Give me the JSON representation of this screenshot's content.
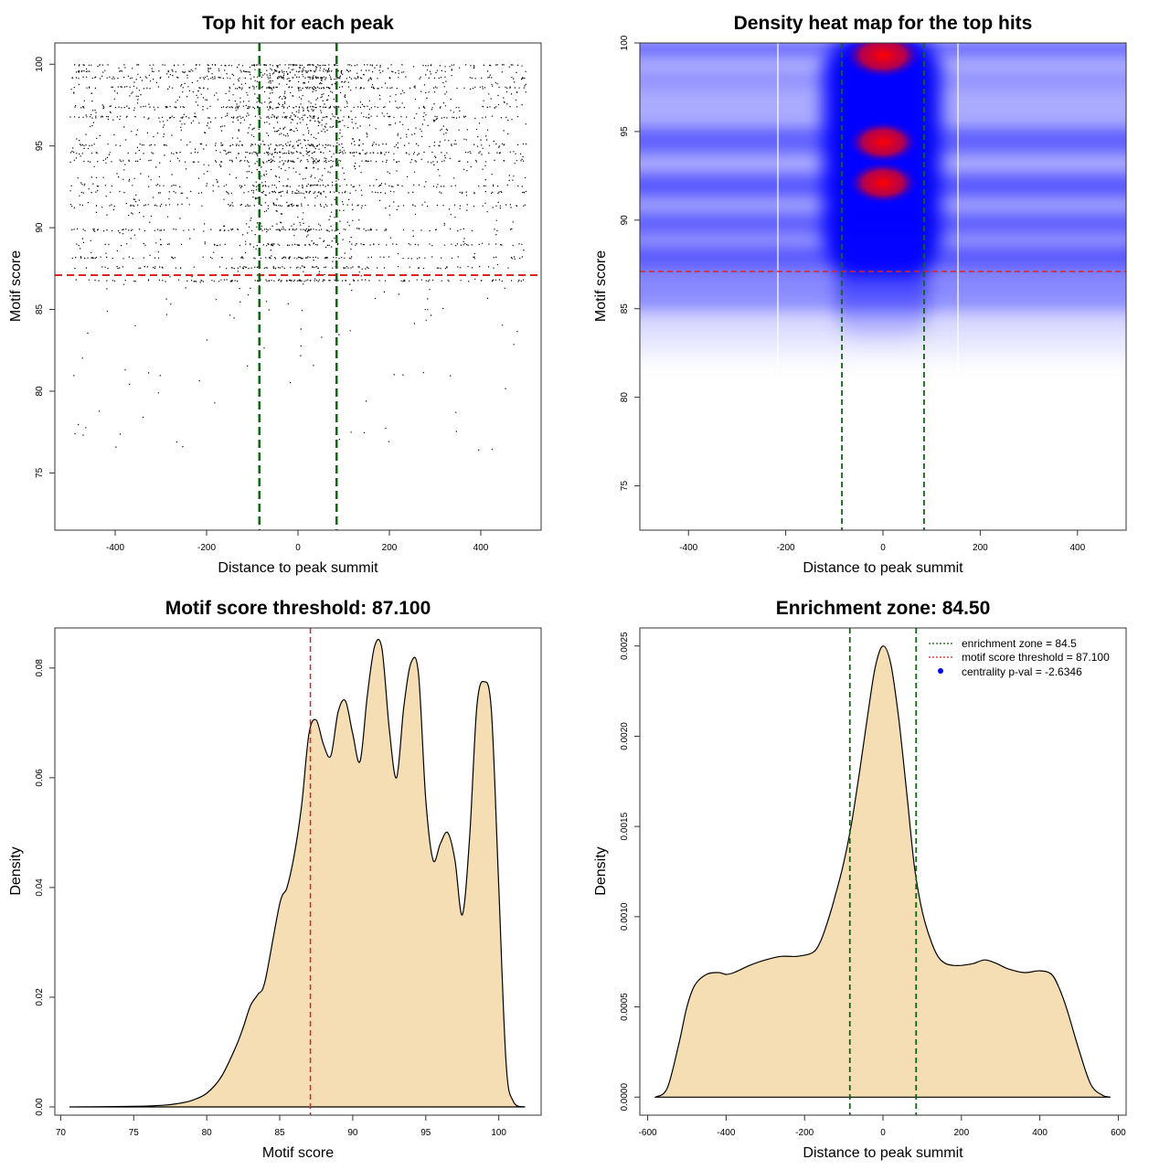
{
  "chart_data": [
    {
      "type": "scatter",
      "title": "Top hit for each peak",
      "xlabel": "Distance to peak summit",
      "ylabel": "Motif score",
      "xlim": [
        -532,
        532
      ],
      "ylim": [
        71.5,
        101.3
      ],
      "xticks": [
        -400,
        -200,
        0,
        200,
        400
      ],
      "yticks": [
        75,
        80,
        85,
        90,
        95,
        100
      ],
      "threshold_y": 87.1,
      "zone_x": [
        -84.5,
        84.5
      ],
      "point_x_range": [
        -500,
        500
      ],
      "point_y_range": [
        76.3,
        100
      ],
      "colors": {
        "points": "#000000",
        "threshold": "#dd2222",
        "zone": "#116611"
      }
    },
    {
      "type": "heatmap",
      "title": "Density heat map for the top hits",
      "xlabel": "Distance to peak summit",
      "ylabel": "Motif score",
      "xlim": [
        -500,
        500
      ],
      "ylim": [
        72.5,
        100
      ],
      "xticks": [
        -400,
        -200,
        0,
        200,
        400
      ],
      "yticks": [
        75,
        80,
        85,
        90,
        95,
        100
      ],
      "threshold_y": 87.1,
      "zone_x": [
        -84.5,
        84.5
      ],
      "hot_spots": [
        {
          "x": 0,
          "y": 99.3
        },
        {
          "x": 0,
          "y": 94.4
        },
        {
          "x": 0,
          "y": 92.1
        }
      ],
      "colors": {
        "low": "#ffffff",
        "mid": "#0000ff",
        "high": "#ff0000"
      }
    },
    {
      "type": "area",
      "title": "Motif score threshold: 87.100",
      "xlabel": "Motif score",
      "ylabel": "Density",
      "xlim": [
        69.6,
        102.9
      ],
      "ylim": [
        -0.0015,
        0.0873
      ],
      "xticks": [
        70,
        75,
        80,
        85,
        90,
        95,
        100
      ],
      "yticks": [
        "0.00",
        "0.02",
        "0.04",
        "0.06",
        "0.08"
      ],
      "threshold_x": 87.1,
      "x": [
        70.6,
        75,
        77,
        78,
        79,
        80,
        81,
        82,
        82.5,
        83,
        83.5,
        84,
        85,
        85.5,
        86,
        86.5,
        87,
        87.5,
        88,
        88.5,
        89,
        89.5,
        90,
        90.5,
        91,
        91.5,
        92,
        92.5,
        93,
        93.5,
        94,
        94.5,
        95,
        95.5,
        96,
        96.5,
        97,
        97.5,
        98,
        98.5,
        99,
        99.5,
        100,
        100.5,
        101,
        101.8
      ],
      "y": [
        0.0,
        0.0001,
        0.0003,
        0.0006,
        0.0012,
        0.0025,
        0.0055,
        0.011,
        0.0145,
        0.0185,
        0.0205,
        0.023,
        0.037,
        0.04,
        0.046,
        0.055,
        0.068,
        0.0705,
        0.066,
        0.064,
        0.072,
        0.074,
        0.068,
        0.063,
        0.075,
        0.084,
        0.0835,
        0.069,
        0.06,
        0.073,
        0.081,
        0.079,
        0.056,
        0.045,
        0.048,
        0.05,
        0.045,
        0.035,
        0.049,
        0.073,
        0.0775,
        0.072,
        0.04,
        0.008,
        0.001,
        0.0
      ],
      "colors": {
        "fill": "#f5deb3",
        "line": "#000000",
        "threshold": "#dd2222"
      }
    },
    {
      "type": "area",
      "title": "Enrichment zone: 84.50",
      "xlabel": "Distance to peak summit",
      "ylabel": "Density",
      "xlim": [
        -620,
        620
      ],
      "ylim": [
        -0.0001,
        0.0026
      ],
      "xticks": [
        -600,
        -400,
        -200,
        0,
        200,
        400,
        600
      ],
      "yticks": [
        "0.0000",
        "0.0005",
        "0.0010",
        "0.0015",
        "0.0020",
        "0.0025"
      ],
      "zone_x": [
        -84.5,
        84.5
      ],
      "x": [
        -580,
        -550,
        -520,
        -500,
        -480,
        -450,
        -420,
        -400,
        -380,
        -340,
        -300,
        -260,
        -220,
        -180,
        -160,
        -140,
        -120,
        -100,
        -80,
        -60,
        -40,
        -20,
        0,
        20,
        40,
        60,
        80,
        100,
        120,
        140,
        160,
        180,
        200,
        230,
        260,
        290,
        320,
        360,
        400,
        430,
        450,
        470,
        500,
        530,
        560,
        580
      ],
      "y": [
        0.0,
        5e-05,
        0.0003,
        0.0005,
        0.00062,
        0.00068,
        0.00069,
        0.00068,
        0.00069,
        0.00073,
        0.00076,
        0.00078,
        0.00078,
        0.0008,
        0.00086,
        0.00098,
        0.00113,
        0.0013,
        0.00152,
        0.0018,
        0.0021,
        0.00238,
        0.0025,
        0.0024,
        0.0021,
        0.0017,
        0.00128,
        0.00103,
        0.00088,
        0.00078,
        0.00074,
        0.00073,
        0.00073,
        0.00074,
        0.00076,
        0.00074,
        0.00071,
        0.00069,
        0.0007,
        0.00068,
        0.0006,
        0.00048,
        0.00026,
        7e-05,
        1e-05,
        0.0
      ],
      "legend": [
        "enrichment zone = 84.5",
        "motif score threshold = 87.100",
        "centrality p-val = -2.6346"
      ],
      "legend_position": "top-right",
      "colors": {
        "fill": "#f5deb3",
        "line": "#000000",
        "zone": "#116611",
        "threshold": "#dd2222",
        "pval": "#0000ff"
      }
    }
  ]
}
